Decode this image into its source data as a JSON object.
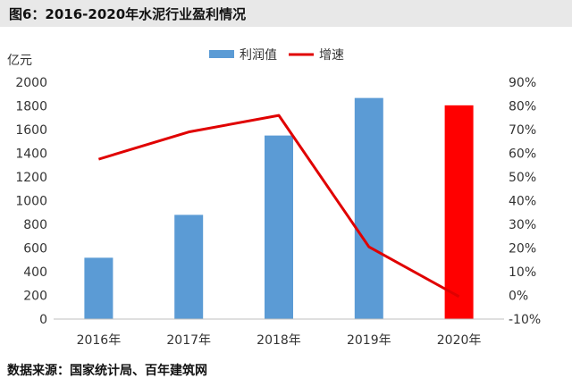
{
  "title": "图6：2016-2020年水泥行业盈利情况",
  "source": "数据来源：国家统计局、百年建筑网",
  "chart_data": {
    "type": "bar",
    "categories": [
      "2016年",
      "2017年",
      "2018年",
      "2019年",
      "2020年"
    ],
    "series": [
      {
        "name": "利润值",
        "type": "bar",
        "axis": "left",
        "values": [
          518,
          880,
          1550,
          1867,
          1805
        ],
        "color": "#5b9bd5",
        "highlight_color": "#ff0000",
        "highlight_index": 4
      },
      {
        "name": "增速",
        "type": "line",
        "axis": "right",
        "values": [
          57.5,
          69,
          76,
          20.5,
          -0.5
        ],
        "color": "#e00000"
      }
    ],
    "ylabel": "亿元",
    "ylim": [
      0,
      2000
    ],
    "y2lim": [
      -10,
      90
    ],
    "yticks": [
      "0",
      "200",
      "400",
      "600",
      "800",
      "1000",
      "1200",
      "1400",
      "1600",
      "1800",
      "2000"
    ],
    "y2ticks": [
      "-10%",
      "0%",
      "10%",
      "20%",
      "30%",
      "40%",
      "50%",
      "60%",
      "70%",
      "80%",
      "90%"
    ],
    "legend_position": "top-center",
    "grid": false
  }
}
